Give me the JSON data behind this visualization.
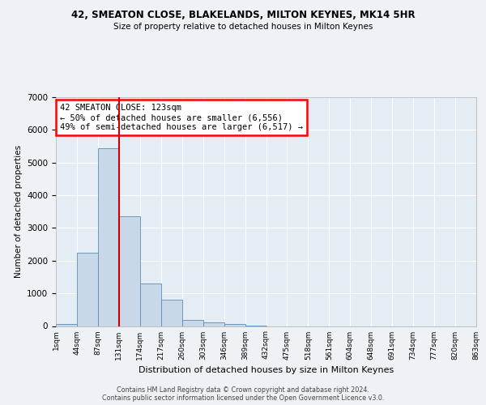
{
  "title_line1": "42, SMEATON CLOSE, BLAKELANDS, MILTON KEYNES, MK14 5HR",
  "title_line2": "Size of property relative to detached houses in Milton Keynes",
  "xlabel": "Distribution of detached houses by size in Milton Keynes",
  "ylabel": "Number of detached properties",
  "footer_line1": "Contains HM Land Registry data © Crown copyright and database right 2024.",
  "footer_line2": "Contains public sector information licensed under the Open Government Licence v3.0.",
  "annotation_line1": "42 SMEATON CLOSE: 123sqm",
  "annotation_line2": "← 50% of detached houses are smaller (6,556)",
  "annotation_line3": "49% of semi-detached houses are larger (6,517) →",
  "bar_values": [
    50,
    2250,
    5450,
    3350,
    1300,
    800,
    175,
    100,
    50,
    5,
    0,
    0,
    0,
    0,
    0,
    0,
    0,
    0,
    0,
    0
  ],
  "bin_labels": [
    "1sqm",
    "44sqm",
    "87sqm",
    "131sqm",
    "174sqm",
    "217sqm",
    "260sqm",
    "303sqm",
    "346sqm",
    "389sqm",
    "432sqm",
    "475sqm",
    "518sqm",
    "561sqm",
    "604sqm",
    "648sqm",
    "691sqm",
    "734sqm",
    "777sqm",
    "820sqm",
    "863sqm"
  ],
  "bar_color": "#c8d8e8",
  "bar_edge_color": "#5b8db8",
  "vline_color": "#cc0000",
  "background_color": "#eef2f7",
  "plot_bg_color": "#e4ecf4",
  "grid_color": "#ffffff",
  "ylim": [
    0,
    7000
  ],
  "yticks": [
    0,
    1000,
    2000,
    3000,
    4000,
    5000,
    6000,
    7000
  ]
}
